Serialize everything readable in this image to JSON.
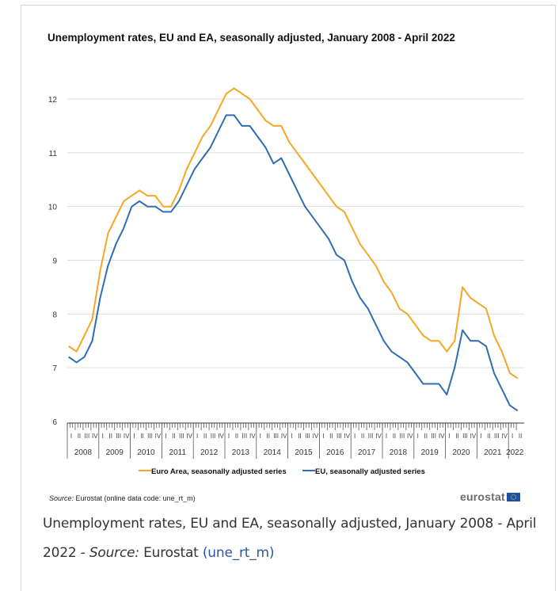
{
  "figure": {
    "title": "Unemployment rates, EU and EA, seasonally adjusted, January 2008 - April 2022",
    "source_label": "Source:",
    "source_text": " Eurostat (online data code: une_rt_m)",
    "logo_text": "eurostat",
    "logo_icon": "eu-flag-icon"
  },
  "caption": {
    "text": "Unemployment rates, EU and EA, seasonally adjusted, January 2008 - April 2022 - ",
    "source_label": "Source:",
    "source_name": " Eurostat ",
    "link_text": "(une_rt_m)"
  },
  "colors": {
    "euro_area": "#f5a623",
    "eu": "#2e6db4",
    "grid": "#dddddd",
    "link": "#2a57a8"
  },
  "chart_data": {
    "type": "line",
    "title": "Unemployment rates, EU and EA, seasonally adjusted, January 2008 - April 2022",
    "xlabel": "",
    "ylabel": "",
    "ylim": [
      6,
      12.3
    ],
    "yticks": [
      6,
      7,
      8,
      9,
      10,
      11,
      12
    ],
    "grid": true,
    "legend_position": "bottom",
    "x_start": "2008-01",
    "x_end": "2022-04",
    "frequency": "monthly (values sampled quarterly, Jan/Apr/Jul/Oct)",
    "year_labels": [
      "2008",
      "2009",
      "2010",
      "2011",
      "2012",
      "2013",
      "2014",
      "2015",
      "2016",
      "2017",
      "2018",
      "2019",
      "2020",
      "2021",
      "2022"
    ],
    "quarter_labels": [
      "I",
      "II",
      "III",
      "IV"
    ],
    "x": [
      "2008-01",
      "2008-04",
      "2008-07",
      "2008-10",
      "2009-01",
      "2009-04",
      "2009-07",
      "2009-10",
      "2010-01",
      "2010-04",
      "2010-07",
      "2010-10",
      "2011-01",
      "2011-04",
      "2011-07",
      "2011-10",
      "2012-01",
      "2012-04",
      "2012-07",
      "2012-10",
      "2013-01",
      "2013-04",
      "2013-07",
      "2013-10",
      "2014-01",
      "2014-04",
      "2014-07",
      "2014-10",
      "2015-01",
      "2015-04",
      "2015-07",
      "2015-10",
      "2016-01",
      "2016-04",
      "2016-07",
      "2016-10",
      "2017-01",
      "2017-04",
      "2017-07",
      "2017-10",
      "2018-01",
      "2018-04",
      "2018-07",
      "2018-10",
      "2019-01",
      "2019-04",
      "2019-07",
      "2019-10",
      "2020-01",
      "2020-04",
      "2020-07",
      "2020-10",
      "2021-01",
      "2021-04",
      "2021-07",
      "2021-10",
      "2022-01",
      "2022-04"
    ],
    "series": [
      {
        "name": "Euro Area, seasonally adjusted series",
        "color": "#f5a623",
        "values": [
          7.4,
          7.3,
          7.6,
          7.9,
          8.8,
          9.5,
          9.8,
          10.1,
          10.2,
          10.3,
          10.2,
          10.2,
          10.0,
          10.0,
          10.3,
          10.7,
          11.0,
          11.3,
          11.5,
          11.8,
          12.1,
          12.2,
          12.1,
          12.0,
          11.8,
          11.6,
          11.5,
          11.5,
          11.2,
          11.0,
          10.8,
          10.6,
          10.4,
          10.2,
          10.0,
          9.9,
          9.6,
          9.3,
          9.1,
          8.9,
          8.6,
          8.4,
          8.1,
          8.0,
          7.8,
          7.6,
          7.5,
          7.5,
          7.3,
          7.5,
          8.5,
          8.3,
          8.2,
          8.1,
          7.6,
          7.3,
          6.9,
          6.8
        ]
      },
      {
        "name": "EU, seasonally adjusted series",
        "color": "#2e6db4",
        "values": [
          7.2,
          7.1,
          7.2,
          7.5,
          8.3,
          8.9,
          9.3,
          9.6,
          10.0,
          10.1,
          10.0,
          10.0,
          9.9,
          9.9,
          10.1,
          10.4,
          10.7,
          10.9,
          11.1,
          11.4,
          11.7,
          11.7,
          11.5,
          11.5,
          11.3,
          11.1,
          10.8,
          10.9,
          10.6,
          10.3,
          10.0,
          9.8,
          9.6,
          9.4,
          9.1,
          9.0,
          8.6,
          8.3,
          8.1,
          7.8,
          7.5,
          7.3,
          7.2,
          7.1,
          6.9,
          6.7,
          6.7,
          6.7,
          6.5,
          7.0,
          7.7,
          7.5,
          7.5,
          7.4,
          6.9,
          6.6,
          6.3,
          6.2
        ]
      }
    ]
  }
}
